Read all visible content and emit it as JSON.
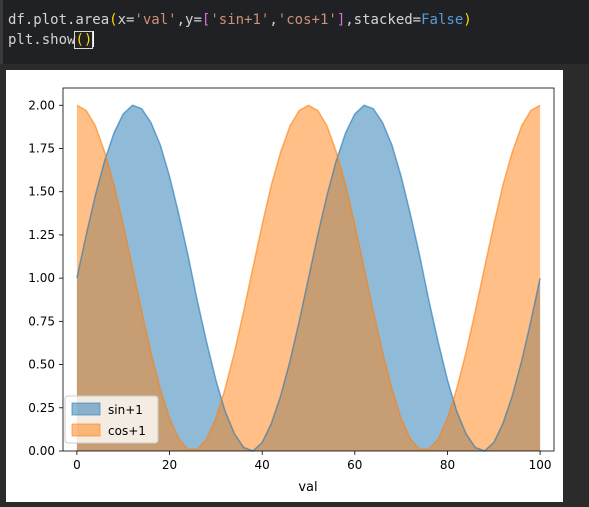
{
  "code": {
    "line1": {
      "a": "df.plot.area",
      "b": "x=",
      "c": "'val'",
      "d": ",y=",
      "e": "'sin+1'",
      "f": ",",
      "g": "'cos+1'",
      "h": ",stacked=",
      "i": "False"
    },
    "line2": {
      "a": "plt.show"
    }
  },
  "chart_data": {
    "type": "area",
    "stacked": false,
    "xlabel": "val",
    "ylabel": "",
    "title": "",
    "xlim": [
      -3,
      103
    ],
    "ylim": [
      0,
      2.1
    ],
    "x_ticks": [
      0,
      20,
      40,
      60,
      80,
      100
    ],
    "y_ticks": [
      "0.00",
      "0.25",
      "0.50",
      "0.75",
      "1.00",
      "1.25",
      "1.50",
      "1.75",
      "2.00"
    ],
    "x": [
      0,
      2,
      4,
      6,
      8,
      10,
      12,
      14,
      16,
      18,
      20,
      22,
      24,
      26,
      28,
      30,
      32,
      34,
      36,
      38,
      40,
      42,
      44,
      46,
      48,
      50,
      52,
      54,
      56,
      58,
      60,
      62,
      64,
      66,
      68,
      70,
      72,
      74,
      76,
      78,
      80,
      82,
      84,
      86,
      88,
      90,
      92,
      94,
      96,
      98,
      100
    ],
    "series": [
      {
        "name": "sin+1",
        "color": "#1f77b4",
        "values": [
          1.0,
          1.25,
          1.48,
          1.68,
          1.84,
          1.95,
          2.0,
          1.98,
          1.9,
          1.77,
          1.59,
          1.37,
          1.13,
          0.87,
          0.63,
          0.41,
          0.23,
          0.1,
          0.02,
          0.0,
          0.05,
          0.16,
          0.32,
          0.52,
          0.75,
          1.0,
          1.25,
          1.48,
          1.68,
          1.84,
          1.95,
          2.0,
          1.98,
          1.9,
          1.77,
          1.59,
          1.37,
          1.13,
          0.87,
          0.63,
          0.41,
          0.23,
          0.1,
          0.02,
          0.0,
          0.05,
          0.16,
          0.32,
          0.52,
          0.75,
          1.0
        ]
      },
      {
        "name": "cos+1",
        "color": "#ff7f0e",
        "values": [
          2.0,
          1.97,
          1.88,
          1.73,
          1.54,
          1.31,
          1.06,
          0.81,
          0.57,
          0.36,
          0.19,
          0.07,
          0.01,
          0.01,
          0.07,
          0.19,
          0.36,
          0.57,
          0.81,
          1.06,
          1.31,
          1.54,
          1.73,
          1.88,
          1.97,
          2.0,
          1.97,
          1.88,
          1.73,
          1.54,
          1.31,
          1.06,
          0.81,
          0.57,
          0.36,
          0.19,
          0.07,
          0.01,
          0.01,
          0.07,
          0.19,
          0.36,
          0.57,
          0.81,
          1.06,
          1.31,
          1.54,
          1.73,
          1.88,
          1.97,
          2.0
        ]
      }
    ],
    "legend": {
      "placement": "lower-left"
    },
    "grid": false
  }
}
